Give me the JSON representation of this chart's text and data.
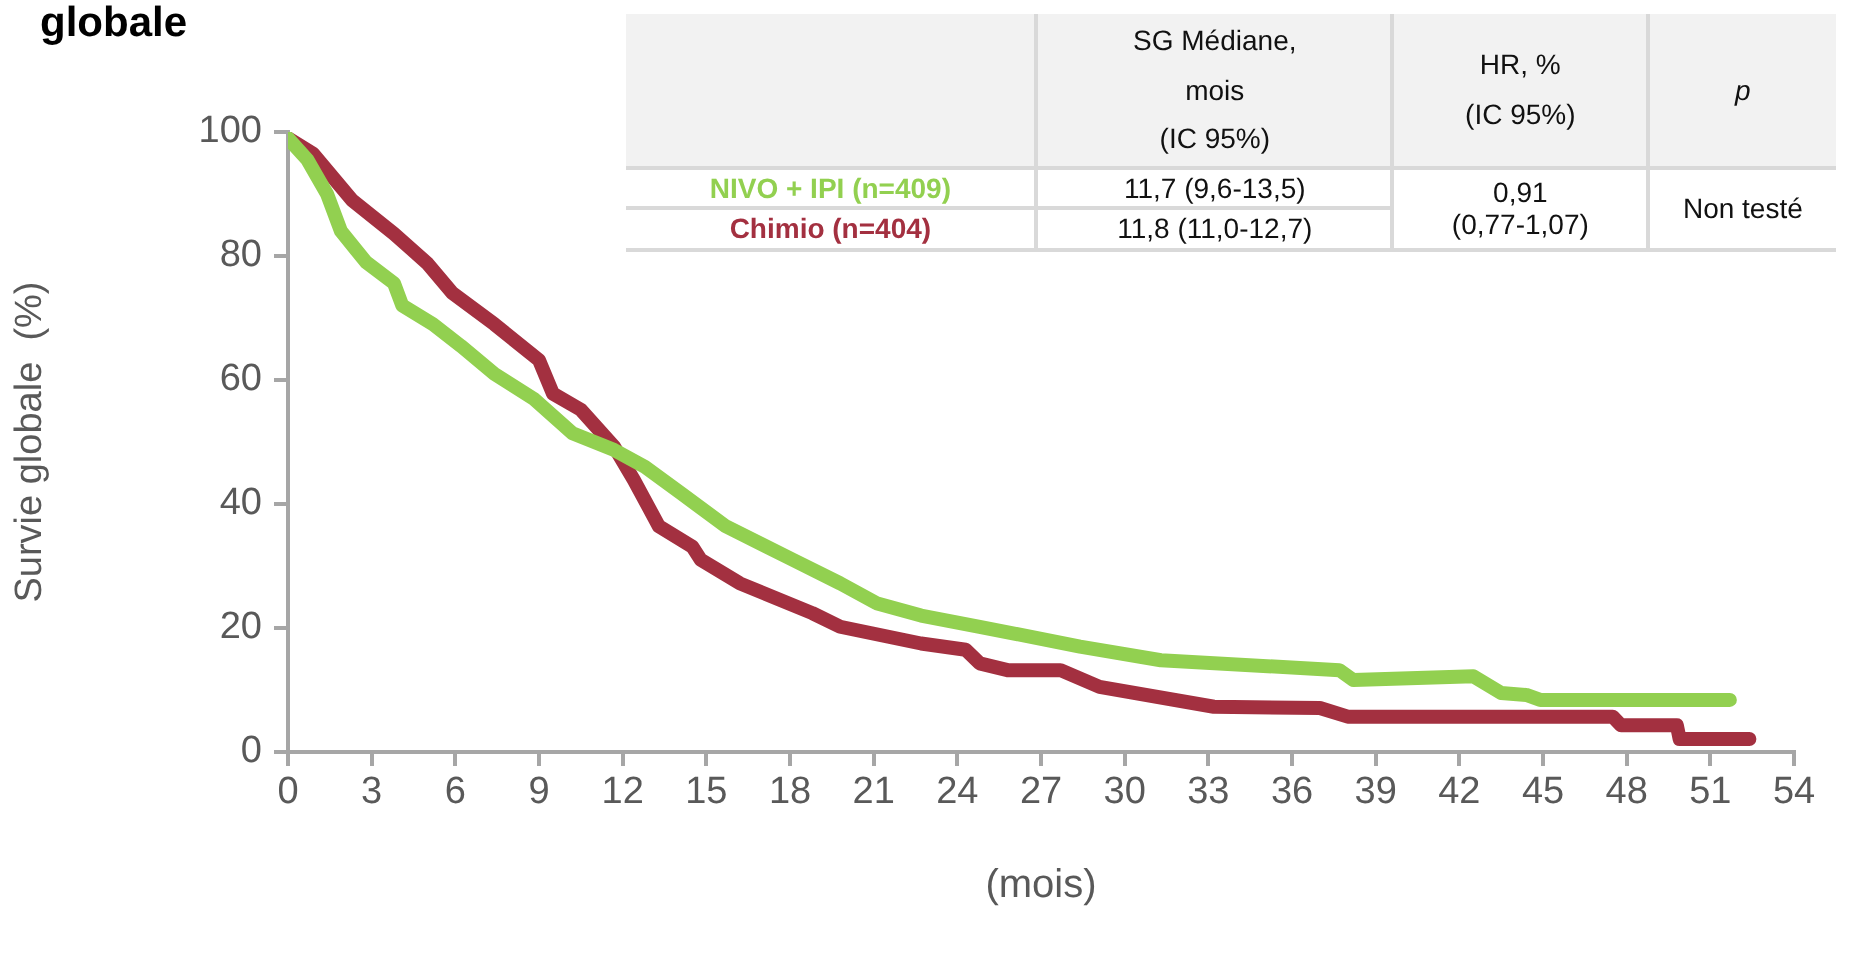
{
  "chart_data": {
    "type": "line",
    "title": "globale",
    "xlabel": "(mois)",
    "ylabel": "Survie globale  (%)",
    "xlim": [
      0,
      54
    ],
    "xticks": [
      0,
      3,
      6,
      9,
      12,
      15,
      18,
      21,
      24,
      27,
      30,
      33,
      36,
      39,
      42,
      45,
      48,
      51,
      54
    ],
    "ylim": [
      0,
      100
    ],
    "yticks": [
      0,
      20,
      40,
      60,
      80,
      100
    ],
    "grid": false,
    "legend": false,
    "marker": "none",
    "line_style": "solid",
    "annotations": [
      "SG Médiane,\nmois\n(IC 95%)",
      "HR, %\n(IC 95%)",
      "p",
      "11,7 (9,6-13,5)",
      "11,8 (11,0-12,7)",
      "0,91\n(0,77-1,07)",
      "Non testé"
    ],
    "series": [
      {
        "name": "NIVO + IPI (n=409)",
        "color": "#92d050",
        "x": [
          0,
          0.7,
          1.4,
          1.9,
          2.8,
          3.8,
          4.1,
          5.2,
          6.2,
          7.4,
          8.8,
          10.2,
          11.7,
          12.8,
          14.1,
          15.7,
          18.1,
          19.8,
          21.1,
          22.7,
          24.8,
          28.4,
          31.3,
          37.7,
          38.2,
          42.5,
          43.5,
          44.4,
          44.9,
          51.7
        ],
        "values": [
          99,
          95.5,
          90,
          84,
          79,
          75.6,
          72,
          69,
          65.5,
          61,
          57,
          51.4,
          48.7,
          46,
          41.7,
          36.4,
          31,
          27.2,
          24,
          22,
          20.2,
          17,
          14.8,
          13.2,
          11.6,
          12.2,
          9.5,
          9.2,
          8.4,
          8.4
        ]
      },
      {
        "name": "Chimio (n=404)",
        "color": "#a33040",
        "x": [
          0,
          0.9,
          2.3,
          3.8,
          5,
          5.9,
          7.4,
          9,
          9.5,
          10.5,
          11.7,
          12.4,
          13.3,
          14.5,
          14.8,
          16.2,
          18.8,
          19.8,
          22.7,
          24.3,
          24.8,
          25.8,
          27.7,
          29.1,
          33.2,
          37,
          38,
          47.5,
          47.8,
          49.8,
          49.9,
          52.4
        ],
        "values": [
          99,
          96.5,
          89,
          83.6,
          78.8,
          74,
          69,
          63.2,
          57.8,
          55.2,
          49.2,
          43.9,
          36.4,
          33.1,
          31,
          27.2,
          22.4,
          20.2,
          17.5,
          16.5,
          14.3,
          13.2,
          13.2,
          10.5,
          7.3,
          7.1,
          5.7,
          5.7,
          4.3,
          4.3,
          2.1,
          2.1
        ]
      }
    ]
  }
}
